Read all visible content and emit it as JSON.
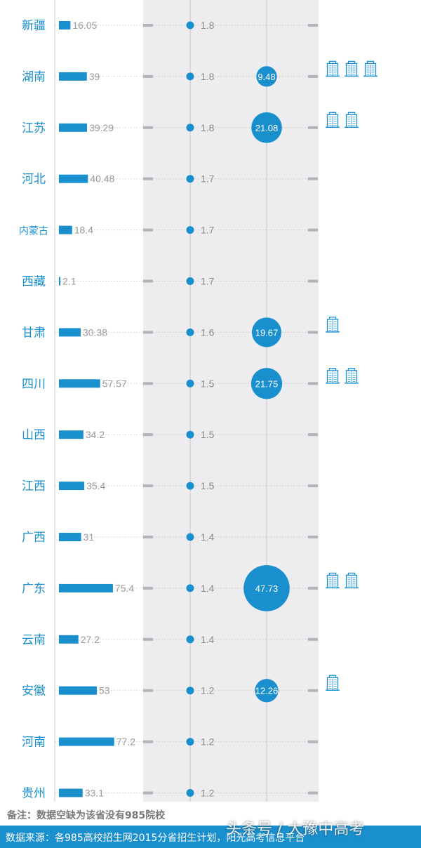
{
  "chart_data": {
    "type": "bar",
    "rows": [
      {
        "province": "新疆",
        "bar_value": 16.05,
        "rate": "1.8",
        "bubble": null,
        "buildings": 0
      },
      {
        "province": "湖南",
        "bar_value": 39,
        "rate": "1.8",
        "bubble": 9.48,
        "buildings": 3
      },
      {
        "province": "江苏",
        "bar_value": 39.29,
        "rate": "1.8",
        "bubble": 21.08,
        "buildings": 2
      },
      {
        "province": "河北",
        "bar_value": 40.48,
        "rate": "1.7",
        "bubble": null,
        "buildings": 0
      },
      {
        "province": "内蒙古",
        "bar_value": 18.4,
        "rate": "1.7",
        "bubble": null,
        "buildings": 0
      },
      {
        "province": "西藏",
        "bar_value": 2.1,
        "rate": "1.7",
        "bubble": null,
        "buildings": 0
      },
      {
        "province": "甘肃",
        "bar_value": 30.38,
        "rate": "1.6",
        "bubble": 19.67,
        "buildings": 1
      },
      {
        "province": "四川",
        "bar_value": 57.57,
        "rate": "1.5",
        "bubble": 21.75,
        "buildings": 2
      },
      {
        "province": "山西",
        "bar_value": 34.2,
        "rate": "1.5",
        "bubble": null,
        "buildings": 0
      },
      {
        "province": "江西",
        "bar_value": 35.4,
        "rate": "1.5",
        "bubble": null,
        "buildings": 0
      },
      {
        "province": "广西",
        "bar_value": 31,
        "rate": "1.4",
        "bubble": null,
        "buildings": 0
      },
      {
        "province": "广东",
        "bar_value": 75.4,
        "rate": "1.4",
        "bubble": 47.73,
        "buildings": 2
      },
      {
        "province": "云南",
        "bar_value": 27.2,
        "rate": "1.4",
        "bubble": null,
        "buildings": 0
      },
      {
        "province": "安徽",
        "bar_value": 53,
        "rate": "1.2",
        "bubble": 12.26,
        "buildings": 1
      },
      {
        "province": "河南",
        "bar_value": 77.2,
        "rate": "1.2",
        "bubble": null,
        "buildings": 0
      },
      {
        "province": "贵州",
        "bar_value": 33.1,
        "rate": "1.2",
        "bubble": null,
        "buildings": 0
      }
    ],
    "colors": {
      "accent": "#1a8fce",
      "band": "#ededf0",
      "tick": "#b4b4b8",
      "grid": "#c9c9cc"
    }
  },
  "note": "备注：数据空缺为该省没有985院校",
  "source": "数据来源：各985高校招生网2015分省招生计划，阳光高考信息平台",
  "watermark": "头条号 / 大豫中高考"
}
